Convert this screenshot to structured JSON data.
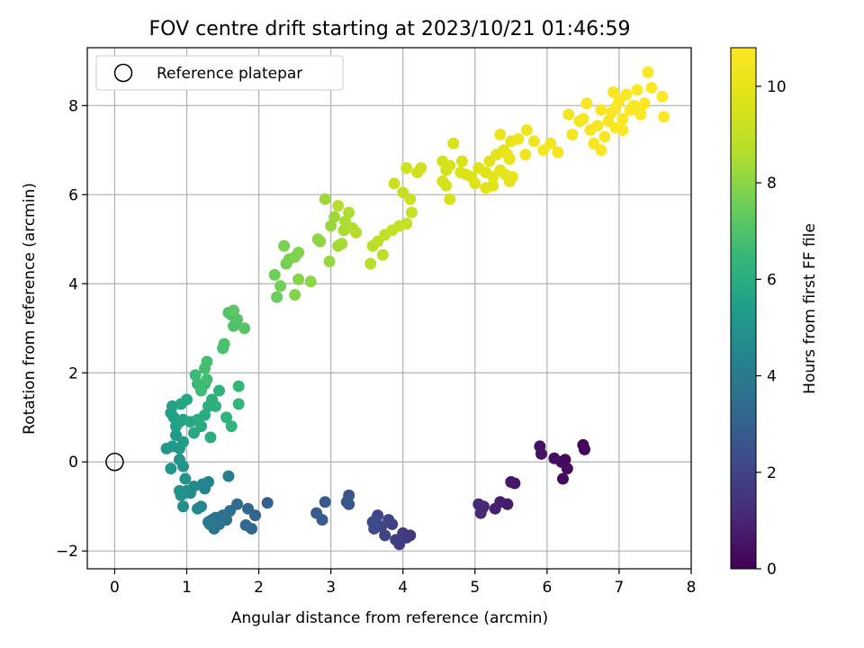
{
  "chart_data": {
    "type": "scatter",
    "title": "FOV centre drift starting at 2023/10/21 01:46:59",
    "xlabel": "Angular distance from reference (arcmin)",
    "ylabel": "Rotation from reference (arcmin)",
    "xlim": [
      -0.38,
      8.0
    ],
    "ylim": [
      -2.4,
      9.3
    ],
    "x_ticks": [
      0,
      1,
      2,
      3,
      4,
      5,
      6,
      7,
      8
    ],
    "y_ticks": [
      -2,
      0,
      2,
      4,
      6,
      8
    ],
    "x_tick_labels": [
      "0",
      "1",
      "2",
      "3",
      "4",
      "5",
      "6",
      "7",
      "8"
    ],
    "y_tick_labels": [
      "−2",
      "0",
      "2",
      "4",
      "6",
      "8"
    ],
    "grid": true,
    "legend": {
      "placement": "top-left",
      "entries": [
        "Reference platepar"
      ]
    },
    "reference_point": {
      "x": 0,
      "y": 0
    },
    "colorbar": {
      "label": "Hours from first FF file",
      "colormap": "viridis",
      "range": [
        0,
        10.8
      ],
      "ticks": [
        0,
        2,
        4,
        6,
        8,
        10
      ],
      "tick_labels": [
        "0",
        "2",
        "4",
        "6",
        "8",
        "10"
      ]
    },
    "points": [
      [
        6.5,
        0.38,
        0.1
      ],
      [
        6.52,
        0.28,
        0.15
      ],
      [
        6.2,
        0.0,
        0.2
      ],
      [
        6.25,
        0.05,
        0.22
      ],
      [
        6.28,
        -0.15,
        0.25
      ],
      [
        6.22,
        -0.38,
        0.3
      ],
      [
        6.1,
        0.08,
        0.35
      ],
      [
        5.9,
        0.35,
        0.4
      ],
      [
        5.92,
        0.18,
        0.45
      ],
      [
        5.55,
        -0.48,
        0.55
      ],
      [
        5.5,
        -0.45,
        0.6
      ],
      [
        5.45,
        -0.95,
        0.7
      ],
      [
        5.35,
        -0.9,
        0.8
      ],
      [
        5.28,
        -1.05,
        0.9
      ],
      [
        5.12,
        -1.0,
        1.0
      ],
      [
        5.1,
        -1.05,
        1.05
      ],
      [
        5.08,
        -1.15,
        1.1
      ],
      [
        5.05,
        -0.95,
        1.15
      ],
      [
        4.1,
        -1.65,
        1.6
      ],
      [
        4.05,
        -1.7,
        1.65
      ],
      [
        4.0,
        -1.6,
        1.7
      ],
      [
        3.95,
        -1.85,
        1.75
      ],
      [
        3.9,
        -1.75,
        1.8
      ],
      [
        3.85,
        -1.4,
        1.9
      ],
      [
        3.8,
        -1.3,
        1.95
      ],
      [
        3.75,
        -1.65,
        2.0
      ],
      [
        3.7,
        -1.45,
        2.05
      ],
      [
        3.65,
        -1.2,
        2.1
      ],
      [
        3.62,
        -1.3,
        2.15
      ],
      [
        3.6,
        -1.5,
        2.2
      ],
      [
        3.58,
        -1.35,
        2.25
      ],
      [
        3.25,
        -0.75,
        2.5
      ],
      [
        3.25,
        -0.95,
        2.55
      ],
      [
        3.22,
        -0.9,
        2.6
      ],
      [
        2.92,
        -0.9,
        2.7
      ],
      [
        2.88,
        -1.3,
        2.8
      ],
      [
        2.8,
        -1.15,
        2.85
      ],
      [
        2.12,
        -0.92,
        3.0
      ],
      [
        1.95,
        -1.2,
        3.1
      ],
      [
        1.9,
        -1.5,
        3.2
      ],
      [
        1.85,
        -1.05,
        3.25
      ],
      [
        1.82,
        -1.42,
        3.3
      ],
      [
        1.7,
        -0.95,
        3.4
      ],
      [
        1.6,
        -1.1,
        3.5
      ],
      [
        1.55,
        -1.3,
        3.55
      ],
      [
        1.5,
        -1.2,
        3.6
      ],
      [
        1.45,
        -1.4,
        3.65
      ],
      [
        1.4,
        -1.25,
        3.7
      ],
      [
        1.38,
        -1.5,
        3.75
      ],
      [
        1.35,
        -1.3,
        3.8
      ],
      [
        1.32,
        -1.4,
        3.85
      ],
      [
        1.3,
        -1.35,
        3.9
      ],
      [
        1.58,
        -0.32,
        4.1
      ],
      [
        1.3,
        -0.45,
        4.3
      ],
      [
        1.25,
        -0.6,
        4.4
      ],
      [
        1.22,
        -0.5,
        4.45
      ],
      [
        1.2,
        -1.0,
        4.5
      ],
      [
        1.15,
        -1.05,
        4.55
      ],
      [
        1.1,
        -0.55,
        4.6
      ],
      [
        1.05,
        -0.7,
        4.7
      ],
      [
        1.0,
        -0.65,
        4.75
      ],
      [
        0.95,
        -1.0,
        4.8
      ],
      [
        0.92,
        -0.75,
        4.85
      ],
      [
        0.9,
        -0.65,
        4.9
      ],
      [
        0.98,
        -0.38,
        4.95
      ],
      [
        0.95,
        -0.1,
        5.0
      ],
      [
        0.9,
        0.05,
        5.05
      ],
      [
        0.78,
        -0.15,
        5.1
      ],
      [
        0.72,
        0.3,
        5.15
      ],
      [
        0.8,
        0.35,
        5.2
      ],
      [
        0.85,
        0.6,
        5.25
      ],
      [
        0.9,
        0.3,
        5.3
      ],
      [
        0.95,
        0.45,
        5.35
      ],
      [
        0.85,
        0.8,
        5.4
      ],
      [
        0.82,
        1.0,
        5.45
      ],
      [
        0.78,
        1.1,
        5.5
      ],
      [
        0.8,
        1.25,
        5.55
      ],
      [
        0.9,
        0.9,
        5.6
      ],
      [
        0.92,
        1.3,
        5.65
      ],
      [
        0.95,
        0.95,
        5.7
      ],
      [
        1.0,
        1.4,
        5.75
      ],
      [
        1.05,
        0.9,
        5.8
      ],
      [
        1.1,
        0.65,
        5.85
      ],
      [
        1.15,
        0.95,
        5.9
      ],
      [
        1.2,
        0.8,
        5.95
      ],
      [
        1.25,
        1.05,
        6.0
      ],
      [
        1.3,
        1.25,
        6.05
      ],
      [
        1.33,
        0.55,
        6.1
      ],
      [
        1.35,
        1.4,
        6.15
      ],
      [
        1.4,
        1.25,
        6.2
      ],
      [
        1.45,
        1.6,
        6.25
      ],
      [
        1.55,
        1.0,
        6.3
      ],
      [
        1.62,
        0.8,
        6.35
      ],
      [
        1.72,
        1.3,
        6.4
      ],
      [
        1.72,
        1.7,
        6.45
      ],
      [
        1.25,
        1.75,
        6.5
      ],
      [
        1.15,
        1.75,
        6.55
      ],
      [
        1.12,
        1.95,
        6.6
      ],
      [
        1.2,
        1.6,
        6.65
      ],
      [
        1.28,
        1.85,
        6.7
      ],
      [
        1.25,
        2.1,
        6.75
      ],
      [
        1.28,
        2.25,
        6.8
      ],
      [
        1.5,
        2.55,
        6.85
      ],
      [
        1.52,
        2.65,
        6.9
      ],
      [
        1.65,
        3.05,
        6.95
      ],
      [
        1.58,
        3.35,
        7.0
      ],
      [
        1.62,
        3.3,
        7.05
      ],
      [
        1.7,
        3.2,
        7.1
      ],
      [
        1.8,
        3.0,
        7.15
      ],
      [
        1.65,
        3.4,
        7.2
      ],
      [
        2.25,
        3.7,
        7.5
      ],
      [
        2.22,
        4.2,
        7.55
      ],
      [
        2.3,
        3.95,
        7.6
      ],
      [
        2.38,
        4.45,
        7.65
      ],
      [
        2.42,
        4.55,
        7.7
      ],
      [
        2.35,
        4.85,
        7.75
      ],
      [
        2.5,
        4.6,
        7.8
      ],
      [
        2.55,
        4.7,
        7.85
      ],
      [
        2.5,
        3.75,
        7.9
      ],
      [
        2.55,
        4.1,
        7.95
      ],
      [
        2.72,
        4.05,
        8.0
      ],
      [
        2.82,
        5.0,
        8.05
      ],
      [
        2.85,
        4.95,
        8.1
      ],
      [
        2.98,
        4.5,
        8.15
      ],
      [
        3.0,
        5.3,
        8.2
      ],
      [
        3.05,
        5.5,
        8.25
      ],
      [
        2.92,
        5.9,
        8.3
      ],
      [
        3.1,
        4.85,
        8.35
      ],
      [
        3.15,
        4.9,
        8.4
      ],
      [
        3.18,
        5.2,
        8.45
      ],
      [
        3.2,
        5.4,
        8.5
      ],
      [
        3.25,
        5.6,
        8.55
      ],
      [
        3.3,
        5.25,
        8.6
      ],
      [
        3.35,
        5.15,
        8.65
      ],
      [
        3.1,
        5.75,
        8.7
      ],
      [
        3.55,
        4.45,
        8.75
      ],
      [
        3.58,
        4.85,
        8.8
      ],
      [
        3.65,
        4.95,
        8.85
      ],
      [
        3.72,
        4.65,
        8.9
      ],
      [
        3.75,
        5.1,
        8.95
      ],
      [
        3.85,
        5.2,
        8.98
      ],
      [
        3.95,
        5.3,
        9.0
      ],
      [
        4.05,
        5.35,
        9.05
      ],
      [
        4.12,
        5.6,
        9.1
      ],
      [
        4.0,
        6.05,
        9.15
      ],
      [
        3.88,
        6.25,
        9.2
      ],
      [
        4.1,
        5.9,
        9.2
      ],
      [
        4.05,
        6.6,
        9.25
      ],
      [
        4.2,
        6.5,
        9.3
      ],
      [
        4.25,
        6.6,
        9.35
      ],
      [
        4.55,
        6.75,
        9.4
      ],
      [
        4.6,
        6.55,
        9.45
      ],
      [
        4.55,
        6.3,
        9.5
      ],
      [
        4.7,
        7.15,
        9.55
      ],
      [
        4.8,
        6.5,
        9.6
      ],
      [
        4.88,
        6.45,
        9.65
      ],
      [
        4.95,
        6.4,
        9.7
      ],
      [
        5.05,
        6.6,
        9.75
      ],
      [
        5.15,
        6.5,
        9.8
      ],
      [
        5.2,
        6.75,
        9.8
      ],
      [
        5.25,
        6.2,
        9.85
      ],
      [
        5.3,
        6.9,
        9.9
      ],
      [
        5.35,
        6.55,
        9.95
      ],
      [
        5.4,
        7.0,
        9.95
      ],
      [
        5.42,
        6.45,
        10.0
      ],
      [
        5.48,
        6.8,
        10.05
      ],
      [
        5.5,
        7.2,
        10.1
      ],
      [
        5.52,
        6.4,
        10.15
      ],
      [
        5.35,
        7.35,
        10.2
      ],
      [
        5.45,
        6.9,
        10.2
      ],
      [
        5.6,
        7.25,
        10.25
      ],
      [
        5.7,
        6.9,
        10.3
      ],
      [
        5.72,
        7.45,
        10.3
      ],
      [
        5.82,
        7.2,
        10.35
      ],
      [
        5.95,
        7.0,
        10.4
      ],
      [
        6.05,
        7.15,
        10.4
      ],
      [
        6.15,
        6.95,
        10.45
      ],
      [
        5.48,
        6.3,
        10.0
      ],
      [
        4.82,
        6.75,
        9.6
      ],
      [
        4.65,
        6.65,
        9.55
      ],
      [
        5.0,
        6.25,
        9.75
      ],
      [
        4.65,
        5.9,
        9.5
      ],
      [
        4.6,
        6.2,
        9.45
      ],
      [
        5.15,
        6.15,
        9.85
      ],
      [
        5.25,
        6.4,
        9.9
      ],
      [
        6.3,
        7.8,
        10.4
      ],
      [
        6.35,
        7.35,
        10.45
      ],
      [
        6.45,
        7.65,
        10.45
      ],
      [
        6.5,
        7.7,
        10.5
      ],
      [
        6.55,
        8.05,
        10.5
      ],
      [
        6.6,
        7.45,
        10.55
      ],
      [
        6.65,
        7.15,
        10.55
      ],
      [
        6.7,
        7.55,
        10.6
      ],
      [
        6.75,
        7.0,
        10.6
      ],
      [
        6.8,
        7.3,
        10.6
      ],
      [
        6.85,
        7.65,
        10.65
      ],
      [
        6.9,
        7.85,
        10.65
      ],
      [
        6.92,
        8.3,
        10.65
      ],
      [
        6.95,
        7.5,
        10.7
      ],
      [
        7.0,
        8.1,
        10.7
      ],
      [
        7.05,
        7.7,
        10.7
      ],
      [
        7.1,
        8.25,
        10.72
      ],
      [
        7.15,
        7.9,
        10.72
      ],
      [
        7.2,
        8.0,
        10.75
      ],
      [
        7.25,
        8.35,
        10.75
      ],
      [
        7.3,
        7.8,
        10.75
      ],
      [
        7.35,
        8.05,
        10.78
      ],
      [
        7.4,
        8.75,
        10.78
      ],
      [
        7.45,
        8.4,
        10.8
      ],
      [
        7.6,
        8.2,
        10.8
      ],
      [
        7.62,
        7.75,
        10.8
      ],
      [
        7.05,
        7.45,
        10.7
      ],
      [
        6.95,
        7.95,
        10.68
      ],
      [
        6.75,
        7.9,
        10.62
      ],
      [
        7.28,
        7.9,
        10.76
      ]
    ]
  }
}
